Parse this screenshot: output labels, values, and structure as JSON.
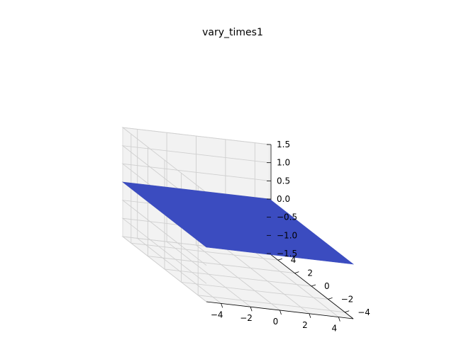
{
  "chart_data": {
    "type": "surface",
    "title": "vary_times1",
    "xlabel": "",
    "ylabel": "",
    "zlabel": "",
    "xlim": [
      -5,
      5
    ],
    "ylim": [
      -5,
      5
    ],
    "zlim": [
      -1.5,
      1.5
    ],
    "x_ticks": [
      -4,
      -2,
      0,
      2,
      4
    ],
    "x_tick_labels": [
      "−4",
      "−2",
      "0",
      "2",
      "4"
    ],
    "y_ticks": [
      -4,
      -2,
      0,
      2,
      4
    ],
    "y_tick_labels": [
      "−4",
      "−2",
      "0",
      "2",
      "4"
    ],
    "z_ticks": [
      -1.5,
      -1.0,
      -0.5,
      0.0,
      0.5,
      1.0,
      1.5
    ],
    "z_tick_labels": [
      "−1.5",
      "−1.0",
      "−0.5",
      "0.0",
      "0.5",
      "1.0",
      "1.5"
    ],
    "surface": {
      "x_range": [
        -5,
        5
      ],
      "y_range": [
        -5,
        5
      ],
      "z_value": 0.0,
      "color": "#3b4cc0"
    },
    "grid": true,
    "pane_color": "#f2f2f2"
  }
}
